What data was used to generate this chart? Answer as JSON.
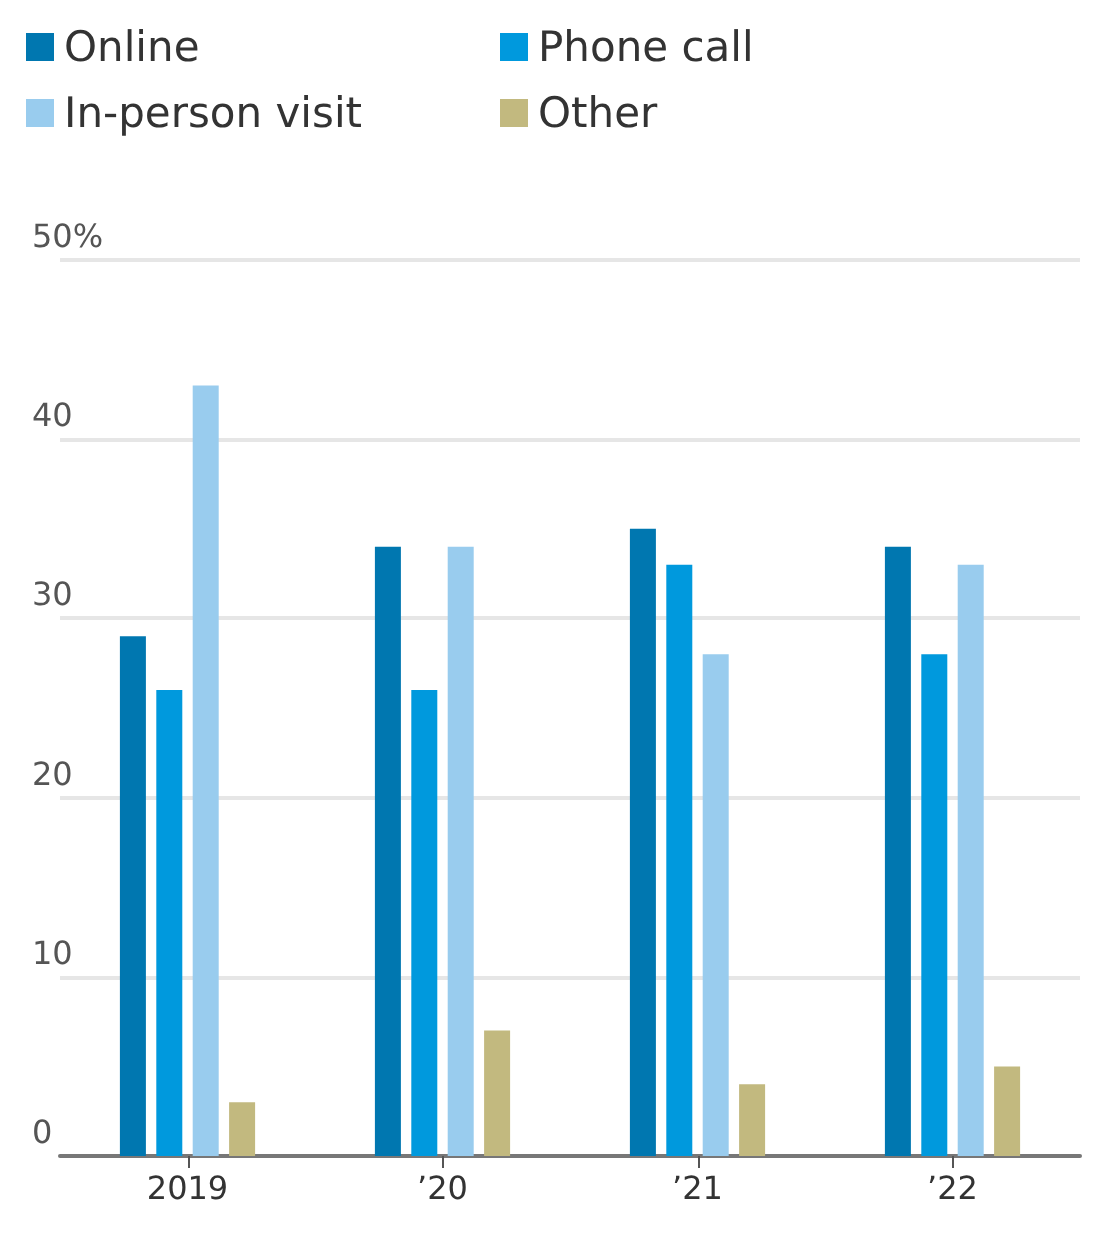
{
  "chart_data": {
    "type": "bar",
    "categories": [
      "2019",
      "’20",
      "’21",
      "’22"
    ],
    "series": [
      {
        "name": "Online",
        "color": "#0077b0",
        "values": [
          29,
          34,
          35,
          34
        ]
      },
      {
        "name": "Phone call",
        "color": "#0099dd",
        "values": [
          26,
          26,
          33,
          28
        ]
      },
      {
        "name": "In-person visit",
        "color": "#99ccee",
        "values": [
          43,
          34,
          28,
          33
        ]
      },
      {
        "name": "Other",
        "color": "#c2b97f",
        "values": [
          3,
          7,
          4,
          5
        ]
      }
    ],
    "ylim": [
      0,
      50
    ],
    "yticks": [
      0,
      10,
      20,
      30,
      40,
      {
        "value": 50,
        "label": "50%"
      }
    ],
    "grid": "y",
    "legend": "top left"
  }
}
